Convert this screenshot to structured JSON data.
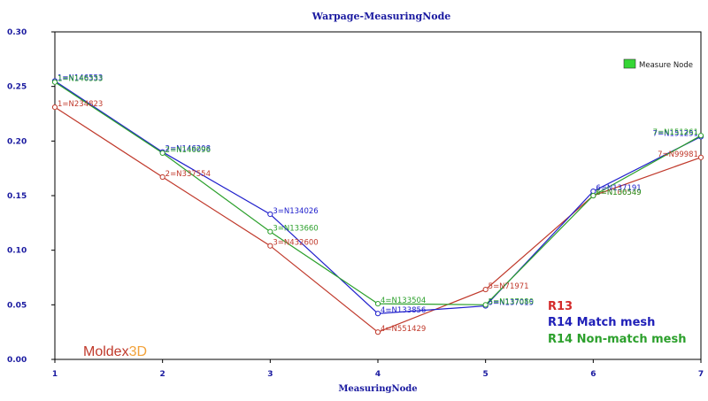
{
  "chart_data": {
    "type": "line",
    "title": "Warpage-MeasuringNode",
    "xlabel": "MeasuringNode",
    "ylabel": "",
    "xlim": [
      1,
      7
    ],
    "ylim": [
      0,
      0.3
    ],
    "x_ticks": [
      "1",
      "2",
      "3",
      "4",
      "5",
      "6",
      "7"
    ],
    "y_ticks": [
      "0.00",
      "0.05",
      "0.10",
      "0.15",
      "0.20",
      "0.25",
      "0.30"
    ],
    "grid": false,
    "legend": {
      "position": "top-right",
      "entries": [
        "Measure Node"
      ],
      "swatch_color": "#35d635"
    },
    "series": [
      {
        "name": "R13",
        "color": "#c0392b",
        "x": [
          1,
          2,
          3,
          4,
          5,
          6,
          7
        ],
        "values": [
          0.231,
          0.167,
          0.104,
          0.025,
          0.064,
          0.15,
          0.185
        ],
        "point_labels": [
          "1=N234823",
          "2=N337554",
          "3=N432600",
          "4=N551429",
          "5=N71971",
          "6=N100549",
          "7=N99981"
        ]
      },
      {
        "name": "R14 Match mesh",
        "color": "#2020cc",
        "x": [
          1,
          2,
          3,
          4,
          5,
          6,
          7
        ],
        "values": [
          0.255,
          0.19,
          0.133,
          0.042,
          0.049,
          0.154,
          0.204
        ],
        "point_labels": [
          "1=N146553",
          "2=N146208",
          "3=N134026",
          "4=N133856",
          "5=N137015",
          "6=N137191",
          "7=N151251"
        ]
      },
      {
        "name": "R14 Non-match mesh",
        "color": "#2ca02c",
        "x": [
          1,
          2,
          3,
          4,
          5,
          6,
          7
        ],
        "values": [
          0.254,
          0.189,
          0.117,
          0.051,
          0.05,
          0.15,
          0.205
        ],
        "point_labels": [
          "1=N146333",
          "2=N146096",
          "3=N133660",
          "4=N133504",
          "5=N137080",
          "6=N136549",
          "7=N151261"
        ]
      }
    ]
  },
  "revisions": {
    "r13": {
      "label": "R13",
      "color": "#d42a2a"
    },
    "match": {
      "label": "R14 Match mesh",
      "color": "#2020b8"
    },
    "nonmatch": {
      "label": "R14 Non-match mesh",
      "color": "#2ca02c"
    }
  },
  "logo": {
    "part1": "Moldex",
    "part2": "3D"
  }
}
